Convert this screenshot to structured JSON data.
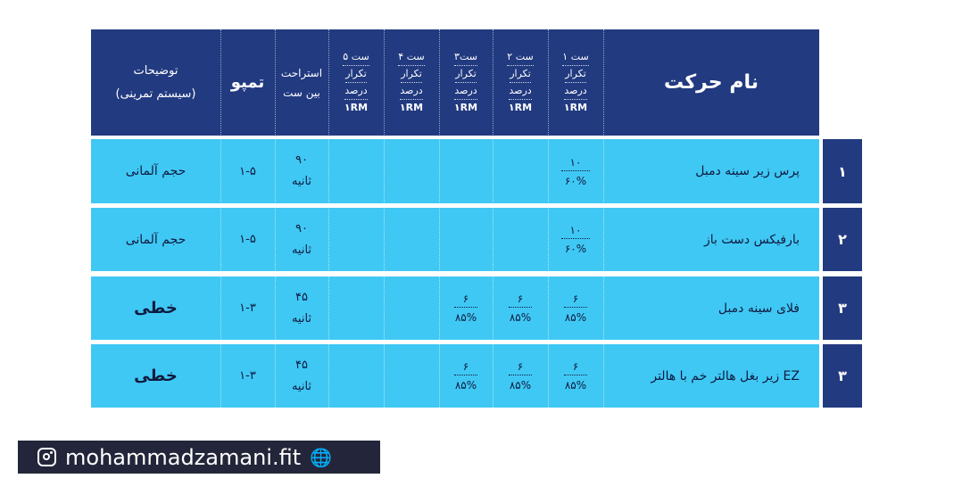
{
  "header": {
    "move_name": "نام حرکت",
    "set_labels": [
      "ست ۱",
      "ست ۲",
      "ست۳",
      "ست ۴",
      "ست ۵"
    ],
    "set_reps": "تکرار",
    "set_percent": "درصد",
    "set_rm": "۱RM",
    "rest_line1": "استراحت",
    "rest_line2": "بین ست",
    "tempo": "تمپو",
    "desc_line1": "توضیحات",
    "desc_line2": "(سیستم تمرینی)"
  },
  "rows": [
    {
      "num": "۱",
      "move": "پرس زیر سینه دمبل",
      "sets": [
        {
          "reps": "۱۰",
          "pct": "۶۰%"
        },
        {
          "reps": "",
          "pct": ""
        },
        {
          "reps": "",
          "pct": ""
        },
        {
          "reps": "",
          "pct": ""
        },
        {
          "reps": "",
          "pct": ""
        }
      ],
      "rest1": "۹۰",
      "rest2": "ثانیه",
      "tempo": "۱-۵",
      "desc": "حجم آلمانی"
    },
    {
      "num": "۲",
      "move": "بارفیکس دست باز",
      "sets": [
        {
          "reps": "۱۰",
          "pct": "۶۰%"
        },
        {
          "reps": "",
          "pct": ""
        },
        {
          "reps": "",
          "pct": ""
        },
        {
          "reps": "",
          "pct": ""
        },
        {
          "reps": "",
          "pct": ""
        }
      ],
      "rest1": "۹۰",
      "rest2": "ثانیه",
      "tempo": "۱-۵",
      "desc": "حجم آلمانی"
    },
    {
      "num": "۳",
      "move": "فلای سینه دمبل",
      "sets": [
        {
          "reps": "۶",
          "pct": "۸۵%"
        },
        {
          "reps": "۶",
          "pct": "۸۵%"
        },
        {
          "reps": "۶",
          "pct": "۸۵%"
        },
        {
          "reps": "",
          "pct": ""
        },
        {
          "reps": "",
          "pct": ""
        }
      ],
      "rest1": "۴۵",
      "rest2": "ثانیه",
      "tempo": "۱-۳",
      "desc": "خطی"
    },
    {
      "num": "۳",
      "move": "زیر بغل هالتر خم با هالتر EZ",
      "sets": [
        {
          "reps": "۶",
          "pct": "۸۵%"
        },
        {
          "reps": "۶",
          "pct": "۸۵%"
        },
        {
          "reps": "۶",
          "pct": "۸۵%"
        },
        {
          "reps": "",
          "pct": ""
        },
        {
          "reps": "",
          "pct": ""
        }
      ],
      "rest1": "۴۵",
      "rest2": "ثانیه",
      "tempo": "۱-۳",
      "desc": "خطی"
    }
  ],
  "footer": {
    "handle": "mohammadzamani.fit",
    "icons": [
      "instagram-icon",
      "globe-icon"
    ]
  },
  "colors": {
    "header_bg": "#223a80",
    "row_bg": "#40c8f4",
    "footer_bg": "#23263a"
  }
}
